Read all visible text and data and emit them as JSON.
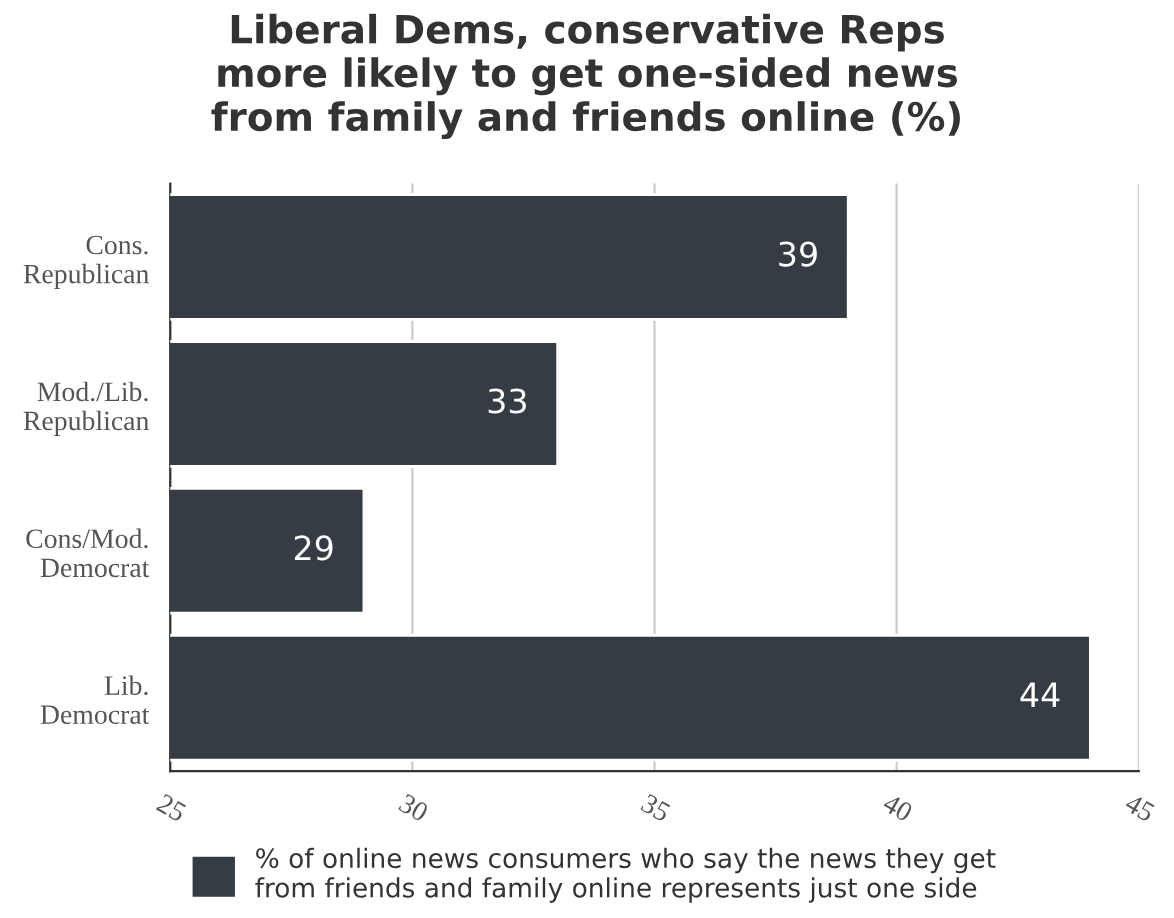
{
  "chart_data": {
    "type": "bar",
    "orientation": "horizontal",
    "title": "Liberal Dems, conservative Reps\nmore likely to get one-sided news\nfrom family and friends online (%)",
    "categories": [
      "Cons.\nRepublican",
      "Mod./Lib.\nRepublican",
      "Cons/Mod.\nDemocrat",
      "Lib.\nDemocrat"
    ],
    "series": [
      {
        "name": "% of online news consumers who say the news they get\nfrom friends and family online represents just one side",
        "color": "#353c44",
        "values": [
          39,
          33,
          29,
          44
        ]
      }
    ],
    "xlim": [
      25,
      45
    ],
    "xticks": [
      25,
      30,
      35,
      40,
      45
    ],
    "grid": "x",
    "legend": "bottom",
    "data_labels": true
  }
}
